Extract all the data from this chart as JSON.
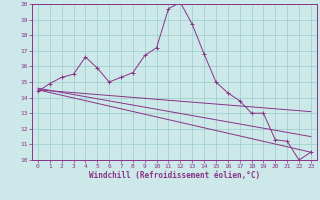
{
  "xlabel": "Windchill (Refroidissement éolien,°C)",
  "bg_color": "#cde8e8",
  "line_color": "#883388",
  "grid_color": "#99cccc",
  "spine_color": "#883388",
  "xlim": [
    -0.5,
    23.5
  ],
  "ylim": [
    10,
    20
  ],
  "x_ticks": [
    0,
    1,
    2,
    3,
    4,
    5,
    6,
    7,
    8,
    9,
    10,
    11,
    12,
    13,
    14,
    15,
    16,
    17,
    18,
    19,
    20,
    21,
    22,
    23
  ],
  "y_ticks": [
    10,
    11,
    12,
    13,
    14,
    15,
    16,
    17,
    18,
    19,
    20
  ],
  "series1_x": [
    0,
    1,
    2,
    3,
    4,
    5,
    6,
    7,
    8,
    9,
    10,
    11,
    12,
    13,
    14,
    15,
    16,
    17,
    18,
    19,
    20,
    21,
    22,
    23
  ],
  "series1_y": [
    14.4,
    14.9,
    15.3,
    15.5,
    16.6,
    15.9,
    15.0,
    15.3,
    15.6,
    16.7,
    17.2,
    19.7,
    20.1,
    18.7,
    16.8,
    15.0,
    14.3,
    13.8,
    13.0,
    13.0,
    11.3,
    11.2,
    10.0,
    10.5
  ],
  "line1_x": [
    0,
    23
  ],
  "line1_y": [
    14.5,
    13.1
  ],
  "line2_x": [
    0,
    23
  ],
  "line2_y": [
    14.6,
    11.5
  ],
  "line3_x": [
    0,
    23
  ],
  "line3_y": [
    14.5,
    10.5
  ]
}
